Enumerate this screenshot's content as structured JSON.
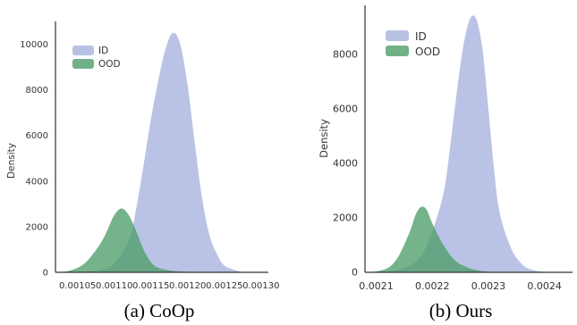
{
  "colors": {
    "id": "#9facdb",
    "ood": "#4e9e6a",
    "axis": "#333333"
  },
  "chart_data": [
    {
      "type": "area",
      "caption": "(a) CoOp",
      "ylabel": "Density",
      "legend": {
        "placement": "top-left",
        "entries": [
          "ID",
          "OOD"
        ]
      },
      "grid": false,
      "xlim": [
        0.00102,
        0.00131
      ],
      "ylim": [
        0,
        11000
      ],
      "xticks": [
        0.00105,
        0.0011,
        0.00115,
        0.0012,
        0.00125,
        0.0013
      ],
      "xtick_labels": [
        "0.00105",
        "0.00110",
        "0.00115",
        "0.00120",
        "0.00125",
        "0.00130"
      ],
      "yticks": [
        0,
        2000,
        4000,
        6000,
        8000,
        10000
      ],
      "ytick_labels": [
        "0",
        "2000",
        "4000",
        "6000",
        "8000",
        "10000"
      ],
      "series": [
        {
          "name": "ID",
          "x": [
            0.00105,
            0.00108,
            0.0011,
            0.00112,
            0.00113,
            0.00114,
            0.00115,
            0.00116,
            0.00117,
            0.00118,
            0.00119,
            0.0012,
            0.00121,
            0.00122,
            0.00123,
            0.00124,
            0.00125,
            0.00127,
            0.00129
          ],
          "values": [
            0,
            100,
            400,
            1400,
            2800,
            4700,
            6700,
            8400,
            9800,
            10500,
            10000,
            8200,
            5600,
            3200,
            1600,
            800,
            300,
            50,
            0
          ]
        },
        {
          "name": "OOD",
          "x": [
            0.00102,
            0.00104,
            0.00106,
            0.00108,
            0.00109,
            0.0011,
            0.00111,
            0.00112,
            0.00113,
            0.00114,
            0.00115,
            0.00116,
            0.00118,
            0.0012,
            0.00122
          ],
          "values": [
            0,
            80,
            400,
            1200,
            1800,
            2500,
            2800,
            2500,
            1800,
            1000,
            450,
            200,
            70,
            20,
            0
          ]
        }
      ]
    },
    {
      "type": "area",
      "caption": "(b) Ours",
      "ylabel": "Density",
      "legend": {
        "placement": "top-left",
        "entries": [
          "ID",
          "OOD"
        ]
      },
      "grid": false,
      "xlim": [
        0.00208,
        0.00245
      ],
      "ylim": [
        0,
        9800
      ],
      "xticks": [
        0.0021,
        0.0022,
        0.0023,
        0.0024
      ],
      "xtick_labels": [
        "0.0021",
        "0.0022",
        "0.0023",
        "0.0024"
      ],
      "yticks": [
        0,
        2000,
        4000,
        6000,
        8000
      ],
      "ytick_labels": [
        "0",
        "2000",
        "4000",
        "6000",
        "8000"
      ],
      "series": [
        {
          "name": "ID",
          "x": [
            0.00211,
            0.00215,
            0.00218,
            0.0022,
            0.00222,
            0.00223,
            0.00224,
            0.00225,
            0.00226,
            0.00227,
            0.00228,
            0.00229,
            0.0023,
            0.00231,
            0.00232,
            0.00234,
            0.00236,
            0.00238,
            0.00241
          ],
          "values": [
            0,
            150,
            600,
            1500,
            2900,
            4300,
            6000,
            7600,
            8800,
            9400,
            9200,
            8100,
            6000,
            3800,
            2200,
            900,
            300,
            80,
            0
          ]
        },
        {
          "name": "OOD",
          "x": [
            0.00209,
            0.00212,
            0.00214,
            0.00216,
            0.00217,
            0.00218,
            0.00219,
            0.0022,
            0.00222,
            0.00224,
            0.00226,
            0.00228,
            0.0023,
            0.00232
          ],
          "values": [
            0,
            150,
            600,
            1500,
            2100,
            2400,
            2300,
            1800,
            1000,
            450,
            200,
            80,
            20,
            0
          ]
        }
      ]
    }
  ]
}
